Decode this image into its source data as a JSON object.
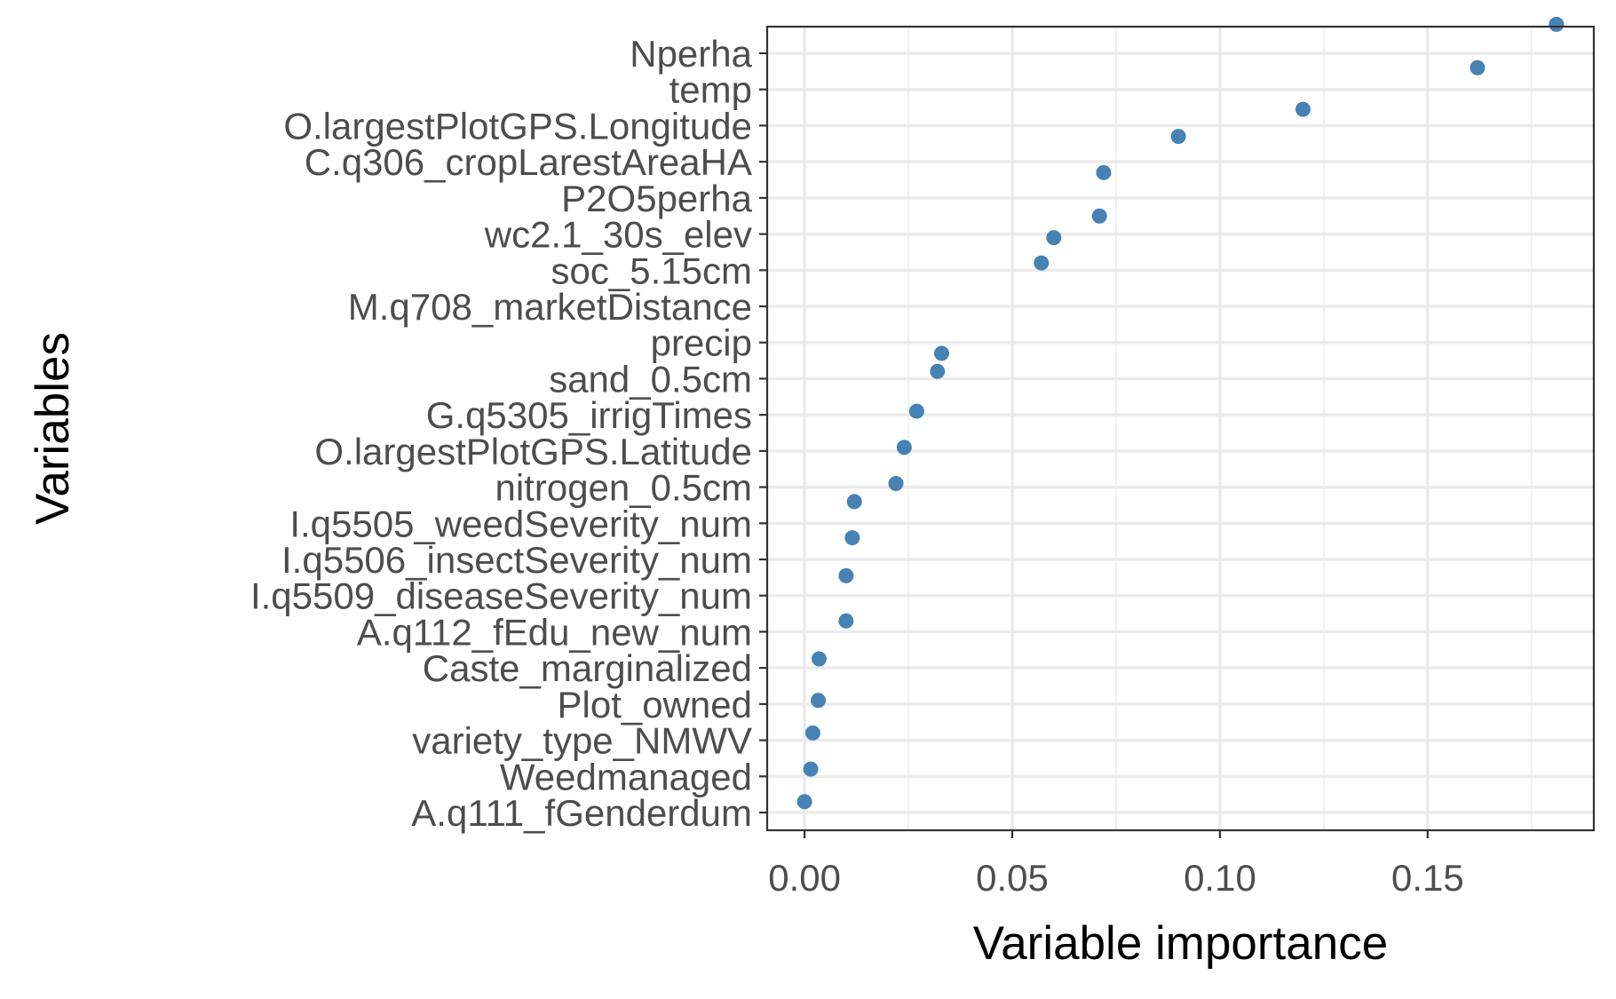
{
  "chart_data": {
    "type": "scatter",
    "xlabel": "Variable importance",
    "ylabel": "Variables",
    "xlim": [
      -0.009,
      0.19
    ],
    "x_ticks": [
      0.0,
      0.05,
      0.1,
      0.15
    ],
    "x_tick_labels": [
      "0.00",
      "0.05",
      "0.10",
      "0.15"
    ],
    "grid": true,
    "point_color": "#4682b4",
    "categories": [
      "Nperha",
      "temp",
      "O.largestPlotGPS.Longitude",
      "C.q306_cropLarestAreaHA",
      "P2O5perha",
      "wc2.1_30s_elev",
      "soc_5.15cm",
      "M.q708_marketDistance",
      "precip",
      "sand_0.5cm",
      "G.q5305_irrigTimes",
      "O.largestPlotGPS.Latitude",
      "nitrogen_0.5cm",
      "I.q5505_weedSeverity_num",
      "I.q5506_insectSeverity_num",
      "I.q5509_diseaseSeverity_num",
      "A.q112_fEdu_new_num",
      "Caste_marginalized",
      "Plot_owned",
      "variety_type_NMWV",
      "Weedmanaged",
      "A.q111_fGenderdum"
    ],
    "points": [
      {
        "x": 0.181,
        "y": 21.8
      },
      {
        "x": 0.162,
        "y": 20.6
      },
      {
        "x": 0.12,
        "y": 19.45
      },
      {
        "x": 0.09,
        "y": 18.7
      },
      {
        "x": 0.072,
        "y": 17.7
      },
      {
        "x": 0.071,
        "y": 16.5
      },
      {
        "x": 0.06,
        "y": 15.9
      },
      {
        "x": 0.057,
        "y": 15.2
      },
      {
        "x": 0.033,
        "y": 12.7
      },
      {
        "x": 0.032,
        "y": 12.2
      },
      {
        "x": 0.027,
        "y": 11.1
      },
      {
        "x": 0.024,
        "y": 10.1
      },
      {
        "x": 0.022,
        "y": 9.1
      },
      {
        "x": 0.012,
        "y": 8.6
      },
      {
        "x": 0.0115,
        "y": 7.6
      },
      {
        "x": 0.01,
        "y": 6.55
      },
      {
        "x": 0.01,
        "y": 5.3
      },
      {
        "x": 0.0035,
        "y": 4.25
      },
      {
        "x": 0.0033,
        "y": 3.1
      },
      {
        "x": 0.002,
        "y": 2.2
      },
      {
        "x": 0.0015,
        "y": 1.2
      },
      {
        "x": 0.0,
        "y": 0.3
      }
    ]
  }
}
